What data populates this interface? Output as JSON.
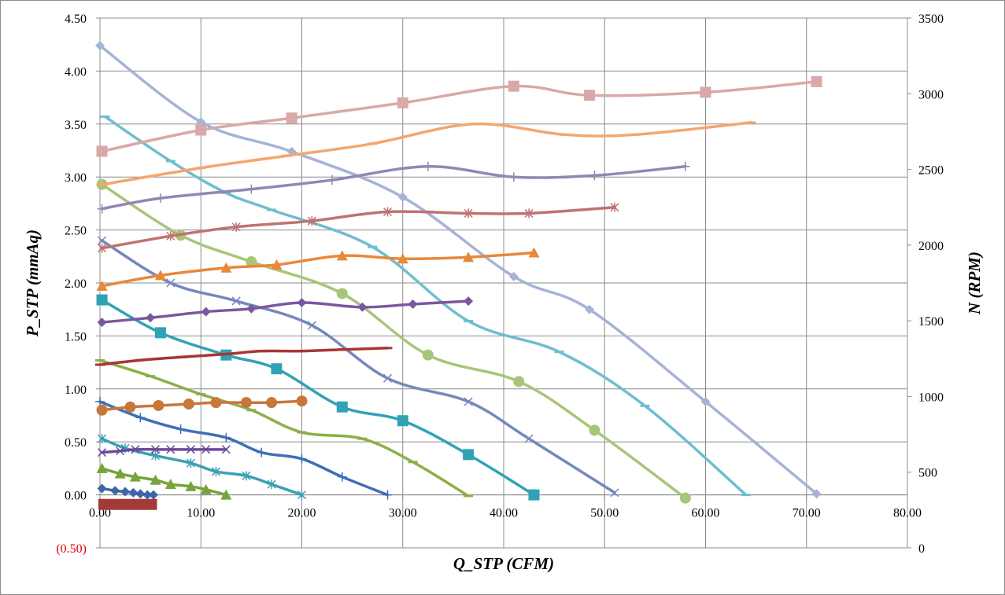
{
  "chart_data": {
    "type": "line",
    "xlabel": "Q_STP (CFM)",
    "ylabel": "P_STP (mmAq)",
    "y2label": "N (RPM)",
    "xlim": [
      0,
      80
    ],
    "ylim": [
      -0.5,
      4.5
    ],
    "y2lim": [
      0,
      3500
    ],
    "grid": true,
    "x_ticks": [
      "0.00",
      "10.00",
      "20.00",
      "30.00",
      "40.00",
      "50.00",
      "60.00",
      "70.00",
      "80.00"
    ],
    "y_ticks": [
      "(0.50)",
      "0.00",
      "0.50",
      "1.00",
      "1.50",
      "2.00",
      "2.50",
      "3.00",
      "3.50",
      "4.00",
      "4.50"
    ],
    "y2_ticks": [
      "0",
      "500",
      "1000",
      "1500",
      "2000",
      "2500",
      "3000",
      "3500"
    ],
    "series": [
      {
        "color": "#a5b3d6",
        "marker": "diamond",
        "axis": "left",
        "x": [
          0,
          10,
          19,
          30,
          41,
          48.5,
          60,
          71
        ],
        "y": [
          4.24,
          3.52,
          3.24,
          2.81,
          2.06,
          1.75,
          0.88,
          0.01
        ]
      },
      {
        "color": "#6fbdd1",
        "marker": "dash",
        "axis": "left",
        "x": [
          0.5,
          7,
          12.5,
          17,
          27,
          36.5,
          45.5,
          54,
          64
        ],
        "y": [
          3.57,
          3.15,
          2.85,
          2.69,
          2.34,
          1.64,
          1.35,
          0.84,
          0.0
        ]
      },
      {
        "color": "#a8c57a",
        "marker": "circle",
        "axis": "left",
        "x": [
          0.2,
          8,
          15,
          24,
          32.5,
          41.5,
          49,
          58
        ],
        "y": [
          2.93,
          2.45,
          2.2,
          1.9,
          1.32,
          1.07,
          0.61,
          -0.03
        ]
      },
      {
        "color": "#7488bd",
        "marker": "x",
        "axis": "left",
        "x": [
          0.2,
          7,
          13.5,
          21,
          28.5,
          36.5,
          42.5,
          51
        ],
        "y": [
          2.4,
          2.0,
          1.83,
          1.6,
          1.1,
          0.88,
          0.53,
          0.02
        ]
      },
      {
        "color": "#31a2b6",
        "marker": "square",
        "axis": "left",
        "x": [
          0.2,
          6,
          12.5,
          17.5,
          24,
          30,
          36.5,
          43
        ],
        "y": [
          1.84,
          1.53,
          1.32,
          1.19,
          0.83,
          0.7,
          0.38,
          0.0
        ]
      },
      {
        "color": "#8eaf46",
        "marker": "dash",
        "axis": "left",
        "x": [
          0,
          5,
          10,
          15,
          20,
          26,
          31,
          36.5
        ],
        "y": [
          1.27,
          1.12,
          0.95,
          0.8,
          0.59,
          0.53,
          0.31,
          -0.01
        ]
      },
      {
        "color": "#3f6fb6",
        "marker": "plus",
        "axis": "left",
        "x": [
          0,
          4,
          8,
          12.5,
          16,
          20,
          24,
          28.5
        ],
        "y": [
          0.88,
          0.73,
          0.62,
          0.54,
          0.4,
          0.34,
          0.17,
          0.0
        ]
      },
      {
        "color": "#3aa0b5",
        "marker": "star",
        "axis": "left",
        "x": [
          0.2,
          2.5,
          5.5,
          9,
          11.5,
          14.5,
          17,
          20
        ],
        "y": [
          0.53,
          0.44,
          0.37,
          0.3,
          0.22,
          0.18,
          0.1,
          0.0
        ]
      },
      {
        "color": "#77a33c",
        "marker": "triangle",
        "axis": "left",
        "x": [
          0.2,
          2,
          3.5,
          5.5,
          7,
          9,
          10.5,
          12.5
        ],
        "y": [
          0.25,
          0.2,
          0.17,
          0.14,
          0.1,
          0.08,
          0.05,
          0.0
        ]
      },
      {
        "color": "#3d65a8",
        "marker": "diamond",
        "axis": "left",
        "x": [
          0.2,
          1.5,
          2.5,
          3.3,
          4,
          4.7,
          5.3
        ],
        "y": [
          0.06,
          0.04,
          0.03,
          0.02,
          0.01,
          0.0,
          0.0
        ]
      },
      {
        "color": "#a33a3a",
        "marker": "square",
        "axis": "left",
        "x": [
          0,
          1,
          2,
          3,
          4,
          5,
          5.5
        ],
        "y": [
          -0.09,
          -0.09,
          -0.09,
          -0.09,
          -0.09,
          -0.09,
          -0.09
        ]
      },
      {
        "color": "#d9a8a8",
        "marker": "square",
        "axis": "right",
        "x": [
          0.2,
          10,
          19,
          30,
          41,
          48.5,
          60,
          71
        ],
        "y": [
          2620,
          2760,
          2840,
          2940,
          3050,
          2990,
          3010,
          3080
        ]
      },
      {
        "color": "#f5a66e",
        "marker": "dash",
        "axis": "right",
        "x": [
          0.2,
          10,
          18.5,
          27,
          37,
          46,
          53,
          64.5
        ],
        "y": [
          2400,
          2510,
          2590,
          2670,
          2800,
          2730,
          2730,
          2810
        ]
      },
      {
        "color": "#9585b3",
        "marker": "plus",
        "axis": "right",
        "x": [
          0.2,
          6,
          15,
          23,
          32.5,
          41,
          49,
          58
        ],
        "y": [
          2240,
          2310,
          2370,
          2430,
          2520,
          2450,
          2460,
          2520
        ]
      },
      {
        "color": "#c07272",
        "marker": "star",
        "axis": "right",
        "x": [
          0.2,
          7,
          13.5,
          21,
          28.5,
          36.5,
          42.5,
          51
        ],
        "y": [
          1980,
          2060,
          2120,
          2160,
          2220,
          2210,
          2210,
          2250
        ]
      },
      {
        "color": "#e8883a",
        "marker": "triangle",
        "axis": "right",
        "x": [
          0.2,
          6,
          12.5,
          17.5,
          24,
          30,
          36.5,
          43
        ],
        "y": [
          1730,
          1800,
          1850,
          1870,
          1930,
          1910,
          1920,
          1950
        ]
      },
      {
        "color": "#7b579e",
        "marker": "diamond",
        "axis": "right",
        "x": [
          0.2,
          5,
          10.5,
          15,
          20,
          26,
          31,
          36.5
        ],
        "y": [
          1490,
          1520,
          1560,
          1580,
          1620,
          1590,
          1610,
          1630
        ]
      },
      {
        "color": "#a83535",
        "marker": "dash",
        "axis": "right",
        "x": [
          0,
          4,
          8,
          12.5,
          16,
          20,
          24,
          28.5
        ],
        "y": [
          1210,
          1240,
          1260,
          1280,
          1300,
          1300,
          1310,
          1320
        ]
      },
      {
        "color": "#c8773a",
        "marker": "circle",
        "axis": "right",
        "x": [
          0.2,
          3,
          5.8,
          8.8,
          11.5,
          14.5,
          17,
          20
        ],
        "y": [
          910,
          930,
          940,
          950,
          960,
          960,
          960,
          970
        ]
      },
      {
        "color": "#6e4a9a",
        "marker": "x",
        "axis": "right",
        "x": [
          0.2,
          2,
          3.5,
          5.5,
          7,
          9,
          10.5,
          12.5
        ],
        "y": [
          630,
          640,
          650,
          650,
          650,
          650,
          650,
          650
        ]
      }
    ]
  }
}
